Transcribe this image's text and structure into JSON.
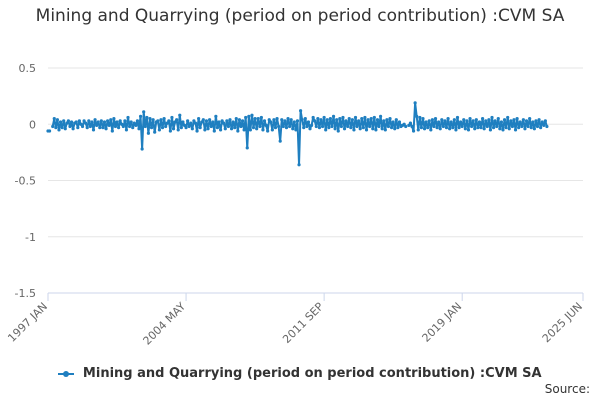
{
  "chart_data": {
    "type": "line",
    "title": "Mining and Quarrying (period on period contribution) :CVM SA",
    "xlabel": "",
    "ylabel": "",
    "ylim": [
      -1.5,
      0.5
    ],
    "y_ticks": [
      "0.5",
      "0",
      "-0.5",
      "-1",
      "-1.5"
    ],
    "y_tick_values": [
      0.5,
      0,
      -0.5,
      -1,
      -1.5
    ],
    "x_ticks": [
      "1997 JAN",
      "2004 MAY",
      "2011 SEP",
      "2019 JAN",
      "2025 JUN"
    ],
    "x_tick_months": [
      0,
      88,
      176,
      264,
      341
    ],
    "x_range_months": [
      0,
      341
    ],
    "series": [
      {
        "name": "Mining and Quarrying (period on period contribution) :CVM SA",
        "color": "#1f7fc0",
        "x_start": "1997 JAN",
        "frequency": "monthly",
        "values": [
          -0.06,
          -0.06,
          null,
          -0.02,
          0.05,
          -0.03,
          0.04,
          -0.05,
          0.02,
          -0.03,
          0.03,
          -0.04,
          0.01,
          0.03,
          -0.02,
          0.02,
          -0.04,
          0.01,
          0.02,
          -0.03,
          0.03,
          0.0,
          -0.02,
          0.03,
          0.01,
          -0.03,
          0.03,
          -0.02,
          0.02,
          -0.05,
          0.04,
          -0.01,
          0.02,
          -0.03,
          0.03,
          -0.03,
          0.02,
          -0.04,
          0.03,
          -0.01,
          0.04,
          -0.06,
          0.05,
          -0.02,
          0.02,
          -0.03,
          0.03,
          0.0,
          -0.02,
          0.03,
          -0.05,
          0.06,
          -0.02,
          0.02,
          -0.03,
          0.01,
          -0.01,
          0.03,
          -0.04,
          0.07,
          -0.22,
          0.11,
          -0.02,
          0.06,
          -0.08,
          0.05,
          -0.03,
          0.04,
          -0.07,
          0.02,
          0.03,
          -0.05,
          0.04,
          -0.03,
          0.05,
          -0.02,
          0.01,
          0.03,
          -0.06,
          0.06,
          -0.04,
          0.02,
          0.04,
          -0.05,
          0.08,
          -0.03,
          0.02,
          -0.01,
          -0.03,
          0.03,
          -0.02,
          0.01,
          -0.04,
          0.03,
          0.01,
          -0.06,
          0.05,
          -0.03,
          0.02,
          0.04,
          -0.05,
          0.03,
          -0.04,
          0.04,
          -0.02,
          0.02,
          -0.06,
          0.07,
          -0.03,
          0.02,
          -0.05,
          0.03,
          0.01,
          -0.04,
          0.03,
          -0.02,
          0.04,
          -0.04,
          0.02,
          -0.03,
          0.05,
          -0.06,
          0.04,
          -0.02,
          0.03,
          -0.05,
          0.06,
          -0.21,
          0.07,
          -0.05,
          0.08,
          -0.03,
          0.05,
          -0.04,
          0.05,
          -0.02,
          0.06,
          -0.05,
          0.03,
          -0.01,
          -0.06,
          0.04,
          0.02,
          -0.05,
          0.04,
          -0.03,
          0.05,
          -0.02,
          -0.15,
          0.04,
          -0.02,
          0.03,
          -0.03,
          0.05,
          -0.02,
          0.04,
          -0.04,
          0.02,
          -0.05,
          0.03,
          -0.36,
          0.12,
          0.04,
          -0.03,
          0.05,
          -0.02,
          0.02,
          -0.04,
          -0.01,
          0.06,
          0.03,
          -0.02,
          0.05,
          -0.03,
          0.04,
          -0.02,
          0.06,
          -0.05,
          0.04,
          -0.03,
          0.05,
          -0.02,
          0.07,
          -0.04,
          0.04,
          -0.06,
          0.05,
          -0.02,
          0.06,
          -0.04,
          0.03,
          -0.02,
          0.05,
          -0.03,
          0.04,
          -0.05,
          0.06,
          -0.02,
          0.03,
          -0.04,
          0.05,
          -0.03,
          0.06,
          -0.05,
          0.04,
          -0.02,
          0.05,
          -0.04,
          0.06,
          -0.05,
          0.04,
          -0.02,
          0.07,
          -0.04,
          0.03,
          -0.05,
          0.04,
          -0.02,
          0.05,
          -0.03,
          0.02,
          -0.04,
          0.04,
          -0.03,
          0.02,
          -0.02,
          -0.01,
          0.0,
          -0.02,
          null,
          -0.01,
          0.01,
          -0.02,
          -0.06,
          0.19,
          0.07,
          -0.05,
          0.06,
          -0.03,
          0.05,
          -0.04,
          0.02,
          -0.03,
          0.03,
          -0.05,
          0.04,
          -0.02,
          0.05,
          -0.03,
          0.02,
          -0.04,
          0.04,
          -0.02,
          0.03,
          -0.03,
          0.05,
          -0.04,
          0.02,
          -0.03,
          0.04,
          -0.05,
          0.06,
          -0.03,
          0.02,
          -0.02,
          0.04,
          -0.04,
          0.03,
          -0.05,
          0.05,
          -0.02,
          0.03,
          -0.04,
          0.04,
          -0.03,
          0.02,
          -0.03,
          0.05,
          -0.04,
          0.03,
          -0.02,
          0.04,
          -0.05,
          0.06,
          -0.03,
          0.03,
          -0.02,
          0.05,
          -0.04,
          0.02,
          -0.05,
          0.04,
          -0.03,
          0.06,
          -0.04,
          0.03,
          -0.02,
          0.04,
          -0.05,
          0.05,
          -0.03,
          0.02,
          -0.02,
          0.04,
          -0.04,
          0.03,
          -0.02,
          0.05,
          -0.03,
          0.02,
          -0.04,
          0.03,
          -0.02,
          0.04,
          -0.03,
          0.02,
          -0.01,
          0.03,
          -0.02
        ]
      }
    ],
    "legend_position": "bottom",
    "grid": true
  },
  "legend": {
    "label": "Mining and Quarrying (period on period contribution) :CVM SA"
  },
  "source": {
    "label": "Source:"
  }
}
